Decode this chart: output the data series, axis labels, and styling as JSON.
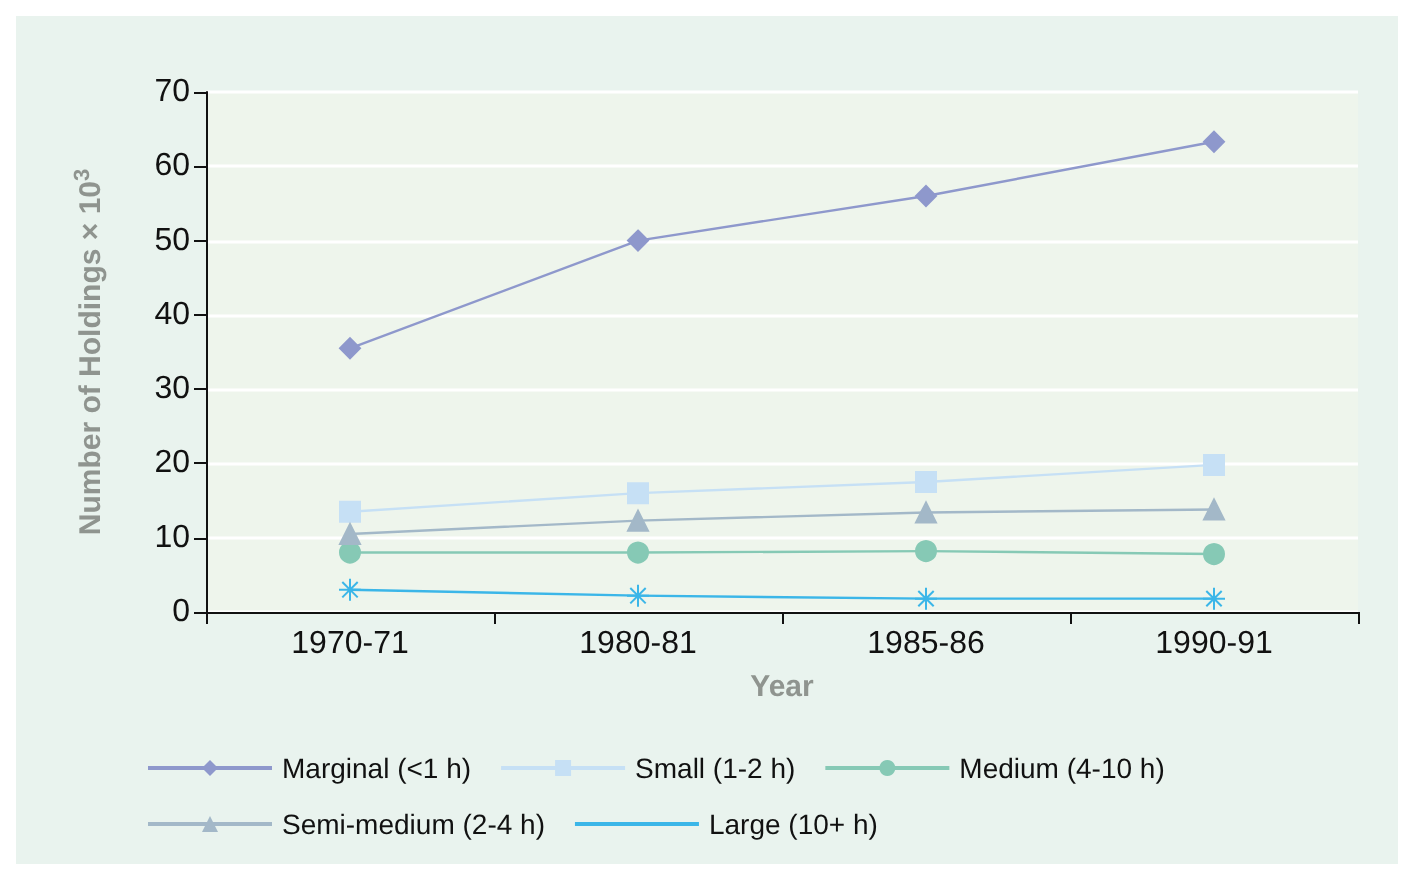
{
  "chart_data": {
    "type": "line",
    "xlabel": "Year",
    "ylabel": "Number of Holdings × 10$^{3}$",
    "categories": [
      "1970-71",
      "1980-81",
      "1985-86",
      "1990-91"
    ],
    "series": [
      {
        "name": "Marginal (<1 h)",
        "color": "#8e98cc",
        "marker": "diamond",
        "values": [
          35.5,
          50,
          56,
          63.3
        ]
      },
      {
        "name": "Small (1-2 h)",
        "color": "#c6e0f5",
        "marker": "square",
        "values": [
          13.5,
          16,
          17.5,
          19.8
        ]
      },
      {
        "name": "Medium (4-10 h)",
        "color": "#86c9b5",
        "marker": "circle",
        "values": [
          8,
          8,
          8.2,
          7.8
        ]
      },
      {
        "name": "Semi-medium (2-4 h)",
        "color": "#a3b8c8",
        "marker": "triangle",
        "values": [
          10.5,
          12.3,
          13.4,
          13.8
        ]
      },
      {
        "name": "Large (10+ h)",
        "color": "#3bb6e8",
        "marker": "cross",
        "values": [
          3,
          2.2,
          1.8,
          1.8
        ]
      }
    ],
    "ylim": [
      0,
      70
    ],
    "yticks": [
      0,
      10,
      20,
      30,
      40,
      50,
      60,
      70
    ],
    "grid": "y",
    "legend": "bottom",
    "line_style": "solid"
  }
}
